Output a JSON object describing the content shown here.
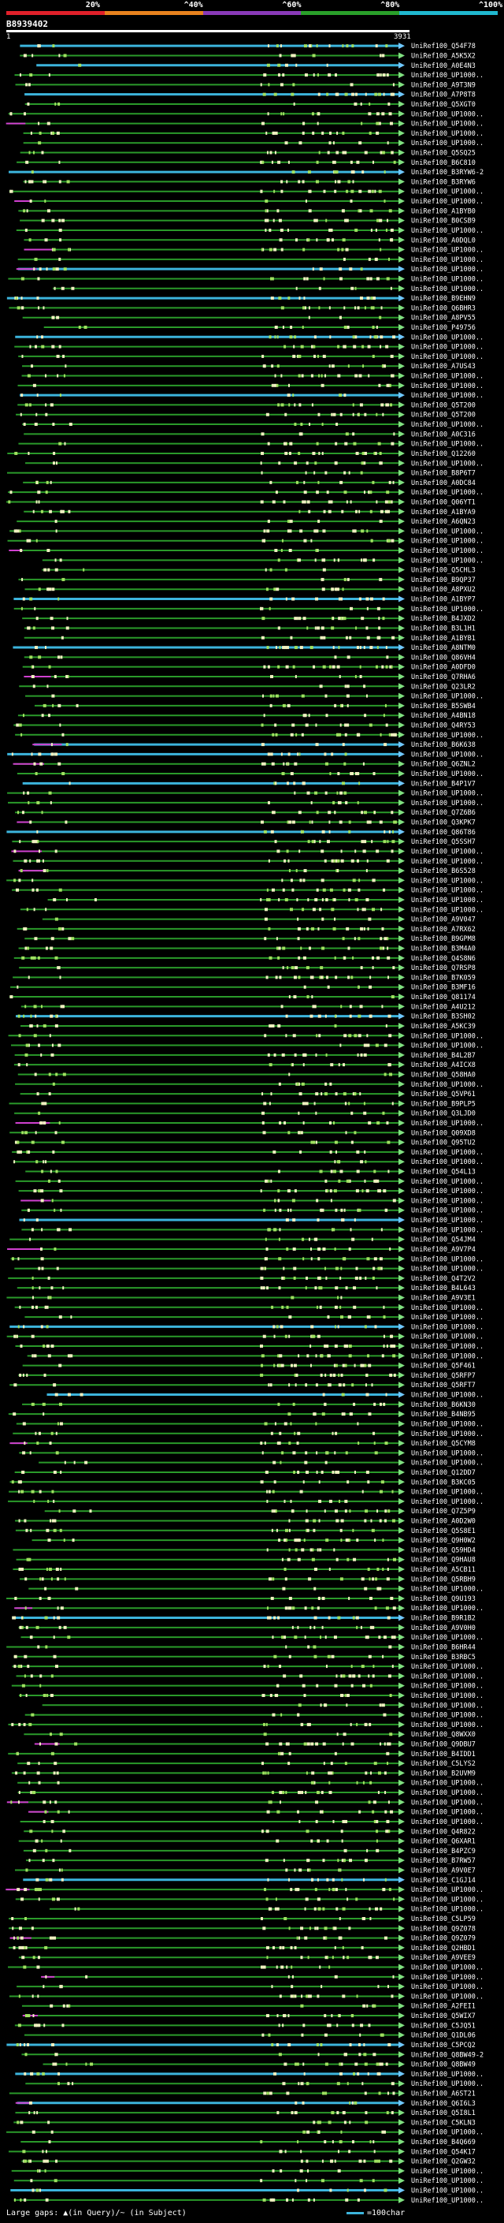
{
  "header": {
    "query_id": "B8939402",
    "range_start": "1",
    "range_end": "3931",
    "identity_scale": [
      {
        "label": "20%",
        "color": "#e0202a"
      },
      {
        "label": "^40%",
        "color": "#e8821e"
      },
      {
        "label": "^60%",
        "color": "#8a3ab8"
      },
      {
        "label": "^80%",
        "color": "#2aa02a"
      },
      {
        "label": "^100%",
        "color": "#20b8d0"
      }
    ]
  },
  "footer": {
    "gaps_text": "Large gaps: ▲(in Query)/~ (in Subject)",
    "scale_text": "=100char"
  },
  "chart_data": {
    "type": "alignment-overview",
    "x_range": [
      1,
      3931
    ],
    "row_labels": [
      "UniRef100_Q54F78",
      "UniRef100_A5K5X2",
      "UniRef100_A0E4N3",
      "UniRef100_UP1000..",
      "UniRef100_A9T3N9",
      "UniRef100_A7P8T8",
      "UniRef100_Q5XGT0",
      "UniRef100_UP1000..",
      "UniRef100_UP1000..",
      "UniRef100_UP1000..",
      "UniRef100_UP1000..",
      "UniRef100_Q5SQ25",
      "UniRef100_B6C810",
      "UniRef100_B3RYW6-2",
      "UniRef100_B3RYW6",
      "UniRef100_UP1000..",
      "UniRef100_UP1000..",
      "UniRef100_A1BYB0",
      "UniRef100_B0CSB9",
      "UniRef100_UP1000..",
      "UniRef100_A0DQL0",
      "UniRef100_UP1000..",
      "UniRef100_UP1000..",
      "UniRef100_UP1000..",
      "UniRef100_UP1000..",
      "UniRef100_UP1000..",
      "UniRef100_B9EHN9",
      "UniRef100_Q6BHR3",
      "UniRef100_A8PV55",
      "UniRef100_P49756",
      "UniRef100_UP1000..",
      "UniRef100_UP1000..",
      "UniRef100_UP1000..",
      "UniRef100_A7US43",
      "UniRef100_UP1000..",
      "UniRef100_UP1000..",
      "UniRef100_UP1000..",
      "UniRef100_Q5T200",
      "UniRef100_Q5T200",
      "UniRef100_UP1000..",
      "UniRef100_A0C316",
      "UniRef100_UP1000..",
      "UniRef100_Q12260",
      "UniRef100_UP1000..",
      "UniRef100_B8P6T7",
      "UniRef100_A0DC84",
      "UniRef100_UP1000..",
      "UniRef100_Q06YT1",
      "UniRef100_A1BYA9",
      "UniRef100_A6QN23",
      "UniRef100_UP1000..",
      "UniRef100_UP1000..",
      "UniRef100_UP1000..",
      "UniRef100_UP1000..",
      "UniRef100_Q5CHL3",
      "UniRef100_B9QP37",
      "UniRef100_A8PXU2",
      "UniRef100_A1BYP7",
      "UniRef100_UP1000..",
      "UniRef100_B4JXD2",
      "UniRef100_B3L1H1",
      "UniRef100_A1BYB1",
      "UniRef100_A8NTM0",
      "UniRef100_Q86VH4",
      "UniRef100_A0DFD0",
      "UniRef100_Q7RHA6",
      "UniRef100_Q23LR2",
      "UniRef100_UP1000..",
      "UniRef100_B5SWB4",
      "UniRef100_A4BN18",
      "UniRef100_Q4RY53",
      "UniRef100_UP1000..",
      "UniRef100_B6K638",
      "UniRef100_UP1000..",
      "UniRef100_Q6ZNL2",
      "UniRef100_UP1000..",
      "UniRef100_B4P1V7",
      "UniRef100_UP1000..",
      "UniRef100_UP1000..",
      "UniRef100_Q7Z6B6",
      "UniRef100_Q3KPK7",
      "UniRef100_Q86T86",
      "UniRef100_Q5SSH7",
      "UniRef100_UP1000..",
      "UniRef100_UP1000..",
      "UniRef100_B6S528",
      "UniRef100_UP1000..",
      "UniRef100_UP1000..",
      "UniRef100_UP1000..",
      "UniRef100_UP1000..",
      "UniRef100_A9V047",
      "UniRef100_A7RX62",
      "UniRef100_B9GPM8",
      "UniRef100_B3M4A0",
      "UniRef100_Q4S8N6",
      "UniRef100_Q7RSP8",
      "UniRef100_B7K059",
      "UniRef100_B3MF16",
      "UniRef100_Q81174",
      "UniRef100_A4U212",
      "UniRef100_B3SH02",
      "UniRef100_A5KC39",
      "UniRef100_UP1000..",
      "UniRef100_UP1000..",
      "UniRef100_B4L2B7",
      "UniRef100_A4ICX8",
      "UniRef100_Q58HA0",
      "UniRef100_UP1000..",
      "UniRef100_Q5VP61",
      "UniRef100_B9PLP5",
      "UniRef100_Q3LJD0",
      "UniRef100_UP1000..",
      "UniRef100_Q09XD8",
      "UniRef100_Q95TU2",
      "UniRef100_UP1000..",
      "UniRef100_UP1000..",
      "UniRef100_Q54L13",
      "UniRef100_UP1000..",
      "UniRef100_UP1000..",
      "UniRef100_UP1000..",
      "UniRef100_UP1000..",
      "UniRef100_UP1000..",
      "UniRef100_UP1000..",
      "UniRef100_Q54JM4",
      "UniRef100_A9V7P4",
      "UniRef100_UP1000..",
      "UniRef100_UP1000..",
      "UniRef100_Q4T2V2",
      "UniRef100_B4L643",
      "UniRef100_A9V3E1",
      "UniRef100_UP1000..",
      "UniRef100_UP1000..",
      "UniRef100_UP1000..",
      "UniRef100_UP1000..",
      "UniRef100_UP1000..",
      "UniRef100_UP1000..",
      "UniRef100_Q5F461",
      "UniRef100_Q5RFP7",
      "UniRef100_Q5RFT7",
      "UniRef100_UP1000..",
      "UniRef100_B6KN30",
      "UniRef100_B4NB95",
      "UniRef100_UP1000..",
      "UniRef100_UP1000..",
      "UniRef100_Q5CYM8",
      "UniRef100_UP1000..",
      "UniRef100_UP1000..",
      "UniRef100_Q12DD7",
      "UniRef100_B3KC05",
      "UniRef100_UP1000..",
      "UniRef100_UP1000..",
      "UniRef100_Q7Z5P9",
      "UniRef100_A0D2W0",
      "UniRef100_Q5S8E1",
      "UniRef100_Q9H0W2",
      "UniRef100_Q59HD4",
      "UniRef100_Q9HAU8",
      "UniRef100_A5CB11",
      "UniRef100_Q5RBH9",
      "UniRef100_UP1000..",
      "UniRef100_Q9U193",
      "UniRef100_UP1000..",
      "UniRef100_B9R1B2",
      "UniRef100_A9V0H0",
      "UniRef100_UP1000..",
      "UniRef100_B6HR44",
      "UniRef100_B3RBC5",
      "UniRef100_UP1000..",
      "UniRef100_UP1000..",
      "UniRef100_UP1000..",
      "UniRef100_UP1000..",
      "UniRef100_UP1000..",
      "UniRef100_UP1000..",
      "UniRef100_UP1000..",
      "UniRef100_Q8WXX0",
      "UniRef100_Q9DBU7",
      "UniRef100_B4IDD1",
      "UniRef100_C5LYS2",
      "UniRef100_B2UVM9",
      "UniRef100_UP1000..",
      "UniRef100_UP1000..",
      "UniRef100_UP1000..",
      "UniRef100_UP1000..",
      "UniRef100_UP1000..",
      "UniRef100_Q4R822",
      "UniRef100_Q6XAR1",
      "UniRef100_B4PZC9",
      "UniRef100_B7RW57",
      "UniRef100_A9V0E7",
      "UniRef100_C1GJ14",
      "UniRef100_UP1000..",
      "UniRef100_UP1000..",
      "UniRef100_UP1000..",
      "UniRef100_C5LP59",
      "UniRef100_Q9Z078",
      "UniRef100_Q9Z079",
      "UniRef100_Q2HBD1",
      "UniRef100_A9VEE9",
      "UniRef100_UP1000..",
      "UniRef100_UP1000..",
      "UniRef100_UP1000..",
      "UniRef100_UP1000..",
      "UniRef100_A2FEI1",
      "UniRef100_Q5WIX7",
      "UniRef100_C5JQ51",
      "UniRef100_Q1DL06",
      "UniRef100_C5PCQ2",
      "UniRef100_Q8BW49-2",
      "UniRef100_Q8BW49",
      "UniRef100_UP1000..",
      "UniRef100_UP1000..",
      "UniRef100_A6ST21",
      "UniRef100_Q6I6L3",
      "UniRef100_Q5I8L1",
      "UniRef100_C5KLN3",
      "UniRef100_UP1000..",
      "UniRef100_B4Q669",
      "UniRef100_Q54K17",
      "UniRef100_Q2GW32",
      "UniRef100_UP1000..",
      "UniRef100_UP1000..",
      "UniRef100_UP1000..",
      "UniRef100_UP1000.."
    ]
  }
}
